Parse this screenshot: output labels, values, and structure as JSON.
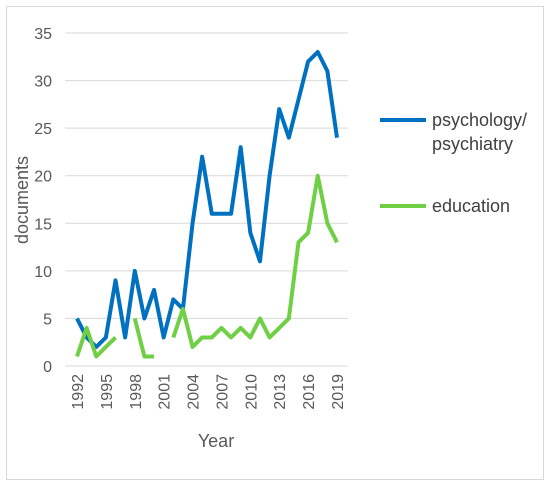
{
  "chart_data": {
    "type": "line",
    "x_label": "Year",
    "y_label": "documents",
    "x": [
      1992,
      1993,
      1994,
      1995,
      1996,
      1997,
      1998,
      1999,
      2000,
      2001,
      2002,
      2003,
      2004,
      2005,
      2006,
      2007,
      2008,
      2009,
      2010,
      2011,
      2012,
      2013,
      2014,
      2015,
      2016,
      2017,
      2018,
      2019
    ],
    "series": [
      {
        "name": "psychology/ psychiatry",
        "color": "#0070c0",
        "values": [
          5,
          3,
          2,
          3,
          9,
          3,
          10,
          5,
          8,
          3,
          7,
          6,
          15,
          22,
          16,
          16,
          16,
          23,
          14,
          11,
          20,
          27,
          24,
          28,
          32,
          33,
          31,
          24
        ]
      },
      {
        "name": "education",
        "color": "#6fcf45",
        "values": [
          1,
          4,
          1,
          2,
          3,
          null,
          5,
          1,
          1,
          null,
          3,
          6,
          2,
          3,
          3,
          4,
          3,
          4,
          3,
          5,
          3,
          4,
          5,
          13,
          14,
          20,
          15,
          13
        ]
      }
    ],
    "xlim": [
      1992,
      2019
    ],
    "xticks": [
      1992,
      1995,
      1998,
      2001,
      2004,
      2007,
      2010,
      2013,
      2016,
      2019
    ],
    "ylim": [
      0,
      35
    ],
    "yticks": [
      0,
      5,
      10,
      15,
      20,
      25,
      30,
      35
    ],
    "grid": true
  }
}
